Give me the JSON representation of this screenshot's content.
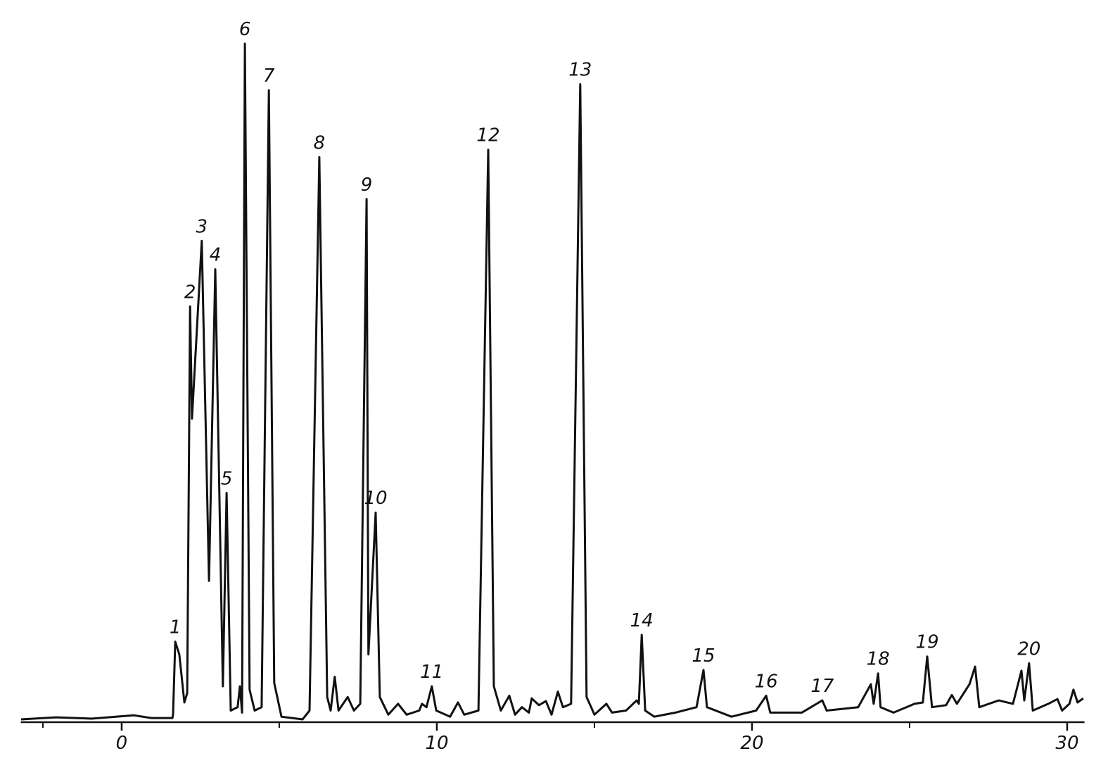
{
  "chart_data": {
    "type": "line",
    "color": "#111111",
    "x": [
      -3.19,
      -2.08,
      -0.96,
      0.38,
      0.94,
      1.61,
      1.63,
      1.7,
      1.83,
      1.99,
      2.08,
      2.17,
      2.23,
      2.54,
      2.77,
      2.97,
      3.21,
      3.33,
      3.46,
      3.68,
      3.75,
      3.82,
      3.91,
      4.06,
      4.22,
      4.44,
      4.67,
      4.84,
      5.07,
      5.74,
      5.96,
      6.27,
      6.52,
      6.63,
      6.76,
      6.88,
      7.17,
      7.37,
      7.57,
      7.77,
      7.83,
      8.06,
      8.19,
      8.46,
      8.77,
      9.04,
      9.44,
      9.53,
      9.67,
      9.84,
      9.98,
      10.42,
      10.67,
      10.87,
      11.32,
      11.63,
      11.81,
      12.03,
      12.3,
      12.48,
      12.7,
      12.92,
      13.01,
      13.24,
      13.46,
      13.64,
      13.84,
      14.0,
      14.26,
      14.55,
      14.75,
      15.0,
      15.38,
      15.56,
      16.0,
      16.34,
      16.41,
      16.5,
      16.61,
      16.9,
      17.57,
      18.24,
      18.46,
      18.57,
      19.35,
      20.13,
      20.45,
      20.58,
      21.58,
      22.23,
      22.37,
      23.37,
      23.77,
      23.86,
      24.0,
      24.08,
      24.49,
      25.16,
      25.42,
      25.56,
      25.71,
      26.16,
      26.34,
      26.5,
      26.9,
      27.08,
      27.21,
      27.83,
      28.28,
      28.55,
      28.64,
      28.79,
      28.91,
      29.4,
      29.69,
      29.84,
      30.07,
      30.2,
      30.33,
      30.51
    ],
    "values": [
      0,
      0.3,
      0.1,
      0.6,
      0.2,
      0.2,
      0.7,
      11.5,
      9.6,
      2.5,
      3.9,
      61.1,
      44.5,
      70.8,
      20.5,
      66.6,
      4.9,
      33.5,
      1.3,
      1.8,
      4.9,
      1.0,
      100,
      4.4,
      1.3,
      1.8,
      93.1,
      5.4,
      0.4,
      0,
      1.3,
      83.2,
      3.3,
      1.3,
      6.3,
      1.3,
      3.3,
      1.3,
      2.3,
      77.0,
      9.6,
      30.6,
      3.3,
      0.7,
      2.3,
      0.7,
      1.3,
      2.3,
      1.8,
      4.9,
      1.3,
      0.4,
      2.5,
      0.7,
      1.3,
      84.3,
      4.9,
      1.3,
      3.5,
      0.7,
      1.8,
      1.0,
      3.1,
      2.1,
      2.7,
      0.7,
      4.1,
      1.8,
      2.3,
      94.0,
      3.3,
      0.7,
      2.3,
      1.0,
      1.3,
      2.8,
      2.3,
      12.5,
      1.3,
      0.4,
      1.0,
      1.8,
      7.3,
      1.8,
      0.4,
      1.3,
      3.5,
      1.0,
      1.0,
      2.8,
      1.3,
      1.8,
      5.2,
      2.3,
      6.8,
      1.8,
      1.0,
      2.3,
      2.5,
      9.3,
      1.8,
      2.1,
      3.6,
      2.3,
      5.2,
      7.8,
      1.8,
      2.8,
      2.3,
      7.2,
      2.8,
      8.3,
      1.3,
      2.3,
      3.0,
      1.3,
      2.3,
      4.4,
      2.5,
      3.1
    ],
    "xlim": [
      -3.2,
      30.55
    ],
    "ylim": [
      0,
      100
    ],
    "xticks": [
      0,
      10,
      20,
      30
    ],
    "minor_xticks": [
      -2.5,
      5,
      15,
      25
    ],
    "annotations": [
      {
        "text": "1",
        "x": 1.7,
        "y": 11.5
      },
      {
        "text": "2",
        "x": 2.17,
        "y": 61.1
      },
      {
        "text": "3",
        "x": 2.54,
        "y": 70.8
      },
      {
        "text": "4",
        "x": 2.97,
        "y": 66.6
      },
      {
        "text": "5",
        "x": 3.33,
        "y": 33.5
      },
      {
        "text": "6",
        "x": 3.91,
        "y": 100
      },
      {
        "text": "7",
        "x": 4.67,
        "y": 93.1
      },
      {
        "text": "8",
        "x": 6.27,
        "y": 83.2
      },
      {
        "text": "9",
        "x": 7.77,
        "y": 77.0
      },
      {
        "text": "10",
        "x": 8.06,
        "y": 30.6
      },
      {
        "text": "11",
        "x": 9.84,
        "y": 4.9
      },
      {
        "text": "12",
        "x": 11.63,
        "y": 84.3
      },
      {
        "text": "13",
        "x": 14.55,
        "y": 94.0
      },
      {
        "text": "14",
        "x": 16.5,
        "y": 12.5
      },
      {
        "text": "15",
        "x": 18.46,
        "y": 7.3
      },
      {
        "text": "16",
        "x": 20.45,
        "y": 3.5
      },
      {
        "text": "17",
        "x": 22.23,
        "y": 2.8
      },
      {
        "text": "18",
        "x": 24.0,
        "y": 6.8
      },
      {
        "text": "19",
        "x": 25.56,
        "y": 9.3
      },
      {
        "text": "20",
        "x": 28.79,
        "y": 8.3
      }
    ]
  }
}
